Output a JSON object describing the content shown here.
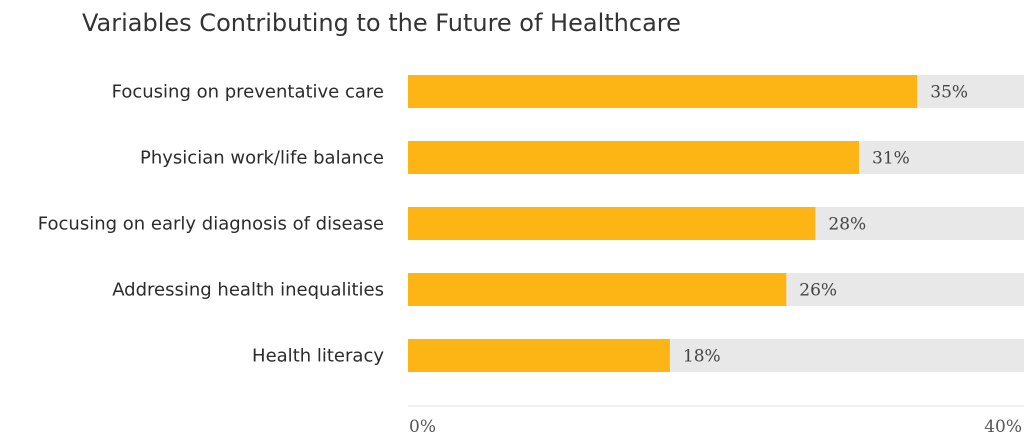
{
  "chart_data": {
    "type": "bar",
    "orientation": "horizontal",
    "title": "Variables Contributing to the Future of Healthcare",
    "categories": [
      "Focusing on preventative care",
      "Physician work/life balance",
      "Focusing on early diagnosis of disease",
      "Addressing health inequalities",
      "Health literacy"
    ],
    "values": [
      35,
      31,
      28,
      26,
      18
    ],
    "value_labels": [
      "35%",
      "31%",
      "28%",
      "26%",
      "18%"
    ],
    "xlim": [
      0,
      40
    ],
    "tick_labels": [
      "0%",
      "40%"
    ],
    "grid": false,
    "colors": {
      "bar": "#FDB515",
      "track": "#E8E8E8",
      "axis": "#E0E0E0",
      "title": "#333333",
      "label": "#2B2B2B"
    }
  }
}
